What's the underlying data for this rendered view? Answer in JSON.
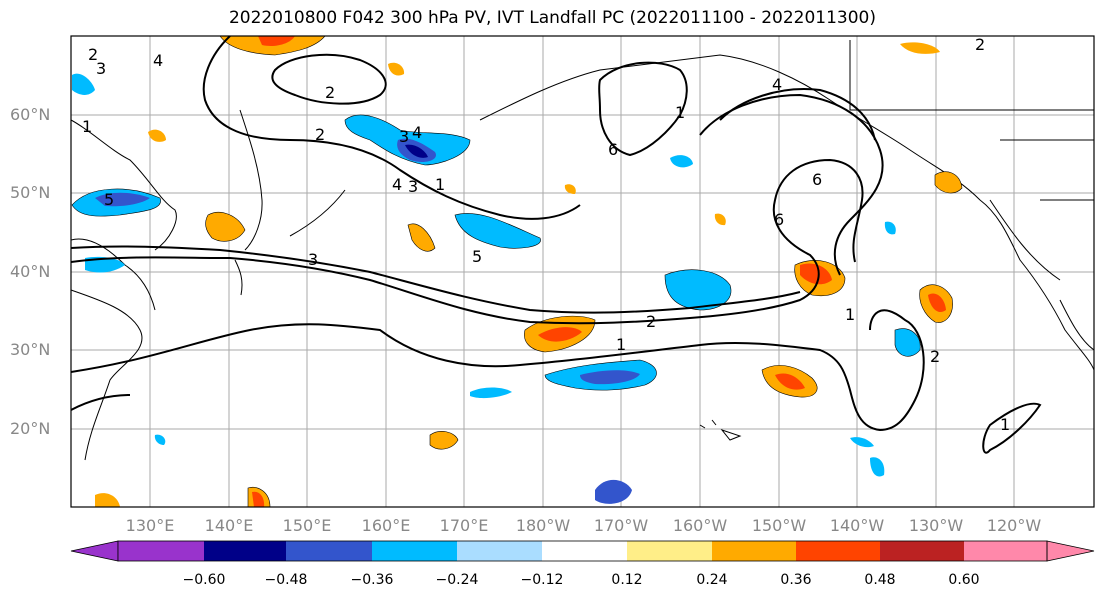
{
  "title": "2022010800 F042 300 hPa PV, IVT Landfall PC (2022011100 - 2022011300)",
  "latitude_labels": [
    "60°N",
    "50°N",
    "40°N",
    "30°N",
    "20°N"
  ],
  "longitude_labels": [
    "130°E",
    "140°E",
    "150°E",
    "160°E",
    "170°E",
    "180°W",
    "170°W",
    "160°W",
    "150°W",
    "140°W",
    "130°W",
    "120°W"
  ],
  "contour_labels": [
    "2",
    "3",
    "4",
    "2",
    "2",
    "6",
    "4",
    "1",
    "6",
    "6",
    "5",
    "3",
    "4",
    "1",
    "5",
    "3",
    "2",
    "1",
    "1",
    "2",
    "1",
    "2",
    "3",
    "4",
    "1"
  ],
  "colorbar": {
    "ticks": [
      "−0.60",
      "−0.48",
      "−0.36",
      "−0.24",
      "−0.12",
      "0.12",
      "0.24",
      "0.36",
      "0.48",
      "0.60"
    ],
    "colors": [
      "#9933cc",
      "#000088",
      "#3355cc",
      "#00bbff",
      "#aaddff",
      "#ffffff",
      "#ffee88",
      "#ffaa00",
      "#ff4400",
      "#bb2222",
      "#ff88aa"
    ]
  }
}
